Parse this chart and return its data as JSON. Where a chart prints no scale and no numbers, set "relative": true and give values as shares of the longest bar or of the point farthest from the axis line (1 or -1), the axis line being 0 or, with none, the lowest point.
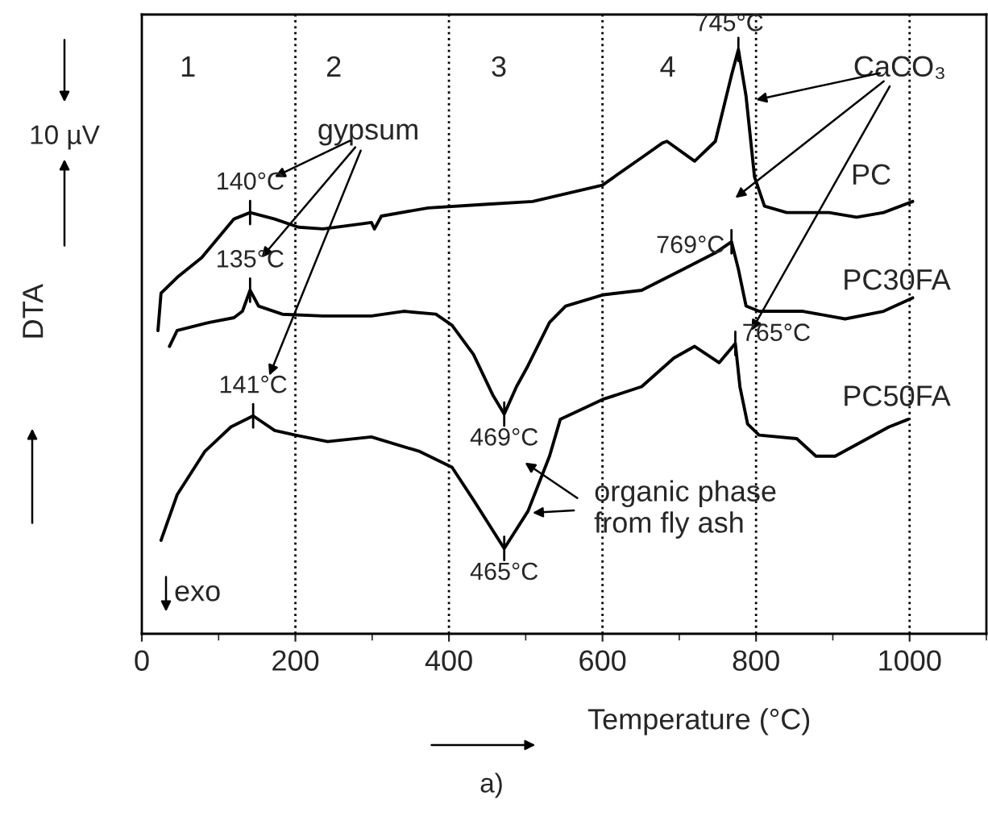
{
  "chart_data": {
    "type": "line",
    "relative": true,
    "xlabel": "Temperature (°C)",
    "ylabel": "DTA",
    "xlim": [
      0,
      1100
    ],
    "xticks": [
      0,
      200,
      400,
      600,
      800,
      1000
    ],
    "grid": false,
    "legend": false,
    "series": [
      {
        "name": "PC",
        "color": "#000000",
        "x": [
          21,
          25,
          46,
          78,
          99,
          120,
          141,
          173,
          204,
          236,
          288,
          299,
          303,
          312,
          373,
          446,
          509,
          600,
          651,
          678,
          684,
          720,
          747,
          768,
          777,
          787,
          798,
          811,
          840,
          895,
          931,
          966,
          1004
        ],
        "values": [
          0.519,
          0.583,
          0.61,
          0.644,
          0.677,
          0.71,
          0.721,
          0.71,
          0.696,
          0.693,
          0.702,
          0.704,
          0.693,
          0.715,
          0.729,
          0.735,
          0.74,
          0.768,
          0.815,
          0.84,
          0.843,
          0.809,
          0.843,
          0.956,
          1.0,
          0.92,
          0.782,
          0.732,
          0.721,
          0.721,
          0.713,
          0.721,
          0.74
        ]
      },
      {
        "name": "PC30FA",
        "color": "#000000",
        "x": [
          36,
          46,
          88,
          120,
          131,
          141,
          152,
          183,
          236,
          299,
          341,
          383,
          404,
          432,
          457,
          472,
          488,
          503,
          531,
          552,
          600,
          651,
          705,
          747,
          768,
          777,
          787,
          804,
          861,
          916,
          966,
          1004
        ],
        "values": [
          0.492,
          0.519,
          0.533,
          0.541,
          0.552,
          0.588,
          0.561,
          0.547,
          0.544,
          0.544,
          0.552,
          0.547,
          0.528,
          0.478,
          0.409,
          0.376,
          0.423,
          0.459,
          0.533,
          0.561,
          0.58,
          0.588,
          0.624,
          0.652,
          0.671,
          0.624,
          0.561,
          0.552,
          0.552,
          0.539,
          0.552,
          0.575
        ]
      },
      {
        "name": "PC50FA",
        "color": "#000000",
        "x": [
          25,
          46,
          82,
          116,
          145,
          173,
          200,
          242,
          299,
          362,
          404,
          432,
          472,
          503,
          531,
          545,
          600,
          651,
          693,
          720,
          752,
          773,
          779,
          789,
          804,
          853,
          878,
          903,
          945,
          973,
          998
        ],
        "values": [
          0.16,
          0.238,
          0.312,
          0.354,
          0.373,
          0.348,
          0.34,
          0.329,
          0.337,
          0.312,
          0.285,
          0.229,
          0.146,
          0.21,
          0.304,
          0.367,
          0.401,
          0.423,
          0.472,
          0.492,
          0.464,
          0.497,
          0.423,
          0.359,
          0.34,
          0.334,
          0.304,
          0.304,
          0.334,
          0.354,
          0.367
        ]
      }
    ],
    "ref_lines": [
      {
        "axis": "x",
        "value": 200,
        "line_style": "dotted",
        "color": "#000000"
      },
      {
        "axis": "x",
        "value": 400,
        "line_style": "dotted",
        "color": "#000000"
      },
      {
        "axis": "x",
        "value": 600,
        "line_style": "dotted",
        "color": "#000000"
      },
      {
        "axis": "x",
        "value": 800,
        "line_style": "dotted",
        "color": "#000000"
      },
      {
        "axis": "x",
        "value": 1000,
        "line_style": "dotted",
        "color": "#000000"
      }
    ],
    "annotations": [
      "1",
      "2",
      "3",
      "4",
      "gypsum",
      "CaCO₃",
      "organic phase\nfrom fly ash",
      {
        "text": "140°C",
        "x": 141,
        "y": 0.721
      },
      {
        "text": "135°C",
        "x": 141,
        "y": 0.588
      },
      {
        "text": "141°C",
        "x": 145,
        "y": 0.373
      },
      {
        "text": "745°C",
        "x": 777,
        "y": 1.0
      },
      {
        "text": "769°C",
        "x": 768,
        "y": 0.671
      },
      {
        "text": "765°C",
        "x": 773,
        "y": 0.497
      },
      {
        "text": "469°C",
        "x": 472,
        "y": 0.376
      },
      {
        "text": "465°C",
        "x": 472,
        "y": 0.146
      },
      "10 µV",
      "exo",
      "a)"
    ]
  }
}
